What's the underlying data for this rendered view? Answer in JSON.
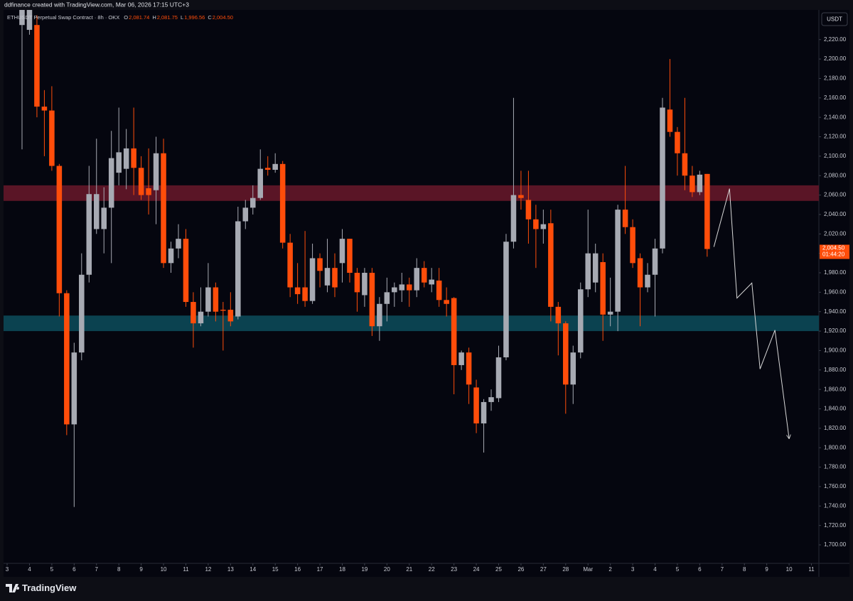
{
  "chart_data": {
    "type": "candlestick",
    "header": "ddfinance created with TradingView.com, Mar 06, 2026 17:15 UTC+3",
    "legend": {
      "symbol": "ETHUSDT Perpetual Swap Contract · 8h · OKX",
      "items": [
        {
          "key": "O",
          "value": "2,081.74"
        },
        {
          "key": "H",
          "value": "2,081.75"
        },
        {
          "key": "L",
          "value": "1,996.56"
        },
        {
          "key": "C",
          "value": "2,004.50"
        }
      ]
    },
    "currency": "USDT",
    "brand": "TradingView",
    "up_color": "#a7aab3",
    "down_color": "#ff4d0a",
    "x": [
      2,
      3,
      4,
      5,
      6,
      7,
      8,
      9,
      10,
      11,
      12,
      13,
      14,
      15,
      16,
      17,
      18,
      19,
      20,
      21,
      22,
      23,
      24,
      25,
      26,
      27,
      28,
      29,
      30,
      31,
      32,
      33,
      34,
      35,
      36,
      37,
      38,
      39,
      40,
      41,
      42,
      43,
      44,
      45,
      46,
      47,
      48,
      49,
      50,
      51,
      52,
      53,
      54,
      55,
      56,
      57,
      58,
      59,
      60,
      61,
      62,
      63,
      64,
      65,
      66,
      67,
      68,
      69,
      70,
      71,
      72,
      73,
      74,
      75,
      76,
      77,
      78,
      79,
      80,
      81,
      82,
      83,
      84,
      85,
      86,
      87,
      88,
      89,
      90,
      91,
      92,
      93,
      94
    ],
    "open": [
      2235,
      2230,
      2235,
      2151,
      2147,
      2090,
      1959,
      1824,
      1898,
      1978,
      2025,
      2025,
      2047,
      2083,
      2087,
      2108,
      2088,
      2067,
      2065,
      2103,
      1990,
      2005,
      2015,
      1950,
      1928,
      1940,
      1965,
      1942,
      1942,
      1935,
      2033,
      2047,
      2057,
      2088,
      2086,
      2092,
      2011,
      1965,
      1965,
      1951,
      1995,
      1967,
      1985,
      1990,
      2015,
      1980,
      1957,
      1980,
      1925,
      1948,
      1960,
      1962,
      1968,
      1962,
      1985,
      1968,
      1972,
      1952,
      1954,
      1885,
      1898,
      1862,
      1825,
      1847,
      1851,
      1893,
      2012,
      2060,
      2055,
      2035,
      2025,
      2031,
      1945,
      1928,
      1865,
      1898,
      1963,
      1970,
      1991,
      1937,
      1940,
      2045,
      2027,
      1995,
      1965,
      1978,
      2005,
      2148,
      2125,
      2103,
      2080,
      2063,
      2081.74
    ],
    "high": [
      2265,
      2270,
      2245,
      2168,
      2172,
      2092,
      1962,
      1908,
      2000,
      2090,
      2118,
      2068,
      2126,
      2150,
      2128,
      2150,
      2100,
      2108,
      2120,
      2118,
      2012,
      2030,
      2025,
      1960,
      1965,
      1990,
      1970,
      1950,
      1960,
      2048,
      2055,
      2070,
      2107,
      2100,
      2103,
      2095,
      2020,
      1990,
      2023,
      2010,
      2000,
      2015,
      2000,
      2025,
      2015,
      1985,
      1985,
      1985,
      1955,
      1975,
      1970,
      1980,
      1975,
      1995,
      1992,
      1985,
      1985,
      1965,
      1955,
      1900,
      1903,
      1870,
      1850,
      1860,
      1905,
      2020,
      2160,
      2085,
      2085,
      2050,
      2045,
      2045,
      1950,
      1930,
      1905,
      1970,
      2045,
      2010,
      2000,
      1975,
      2050,
      2090,
      2035,
      2000,
      1990,
      2015,
      2160,
      2200,
      2130,
      2160,
      2090,
      2085,
      2081.75
    ],
    "low": [
      2107,
      2225,
      2140,
      2100,
      2085,
      1935,
      1813,
      1739,
      1890,
      1970,
      2020,
      2000,
      1990,
      2070,
      2066,
      2060,
      2055,
      2040,
      2030,
      1985,
      1980,
      1995,
      1945,
      1903,
      1925,
      1935,
      1930,
      1900,
      1925,
      1932,
      2025,
      2040,
      2055,
      2080,
      2083,
      2005,
      1955,
      1948,
      1945,
      1948,
      1965,
      1960,
      1955,
      1970,
      1970,
      1940,
      1945,
      1915,
      1910,
      1930,
      1945,
      1950,
      1945,
      1955,
      1965,
      1960,
      1945,
      1935,
      1855,
      1880,
      1845,
      1815,
      1795,
      1838,
      1847,
      1890,
      2005,
      2045,
      2010,
      1985,
      2010,
      1930,
      1895,
      1835,
      1845,
      1892,
      1955,
      1960,
      1910,
      1925,
      1920,
      2020,
      1985,
      1925,
      1960,
      1935,
      2000,
      2120,
      2080,
      2065,
      2058,
      2060,
      1996.56
    ],
    "close": [
      2260,
      2260,
      2151,
      2147,
      2090,
      1959,
      1824,
      1898,
      1978,
      2061,
      2061,
      2047,
      2098,
      2104,
      2108,
      2088,
      2060,
      2060,
      2103,
      1990,
      2005,
      2015,
      1950,
      1928,
      1940,
      1965,
      1940,
      1941,
      1930,
      2033,
      2047,
      2057,
      2087,
      2086,
      2092,
      2011,
      1965,
      1958,
      1951,
      1995,
      1982,
      1985,
      1965,
      2015,
      1980,
      1960,
      1980,
      1925,
      1948,
      1960,
      1965,
      1968,
      1962,
      1985,
      1970,
      1973,
      1952,
      1948,
      1885,
      1898,
      1865,
      1825,
      1847,
      1852,
      1893,
      2012,
      2060,
      2057,
      2035,
      2025,
      2030,
      1945,
      1928,
      1865,
      1898,
      1963,
      2000,
      2000,
      1937,
      1940,
      2045,
      2027,
      1990,
      1965,
      1978,
      2005,
      2150,
      2125,
      2103,
      2080,
      2063,
      2081,
      2004.5
    ],
    "zones": [
      {
        "range": [
          2054,
          2070
        ],
        "color": "#5a1526"
      },
      {
        "range": [
          1920,
          1936
        ],
        "color": "#0b4250"
      }
    ],
    "projection": {
      "x": [
        94.9,
        97.0,
        98.0,
        100.0,
        101.1,
        103.1,
        105.0
      ],
      "values": [
        2006.7,
        2066.6,
        1954,
        1969.5,
        1881,
        1921,
        1809.5
      ],
      "color": "#d8d8d8"
    },
    "last_price": {
      "value": 2004.5,
      "label": "2,004.50",
      "countdown": "01:44:20"
    },
    "xlim": [
      -0.48,
      109
    ],
    "ylim": [
      1681,
      2250.5
    ],
    "xticks": [
      {
        "value": 0,
        "label": "3"
      },
      {
        "value": 3,
        "label": "4"
      },
      {
        "value": 6,
        "label": "5"
      },
      {
        "value": 9,
        "label": "6"
      },
      {
        "value": 12,
        "label": "7"
      },
      {
        "value": 15,
        "label": "8"
      },
      {
        "value": 18,
        "label": "9"
      },
      {
        "value": 21,
        "label": "10"
      },
      {
        "value": 24,
        "label": "11"
      },
      {
        "value": 27,
        "label": "12"
      },
      {
        "value": 30,
        "label": "13"
      },
      {
        "value": 33,
        "label": "14"
      },
      {
        "value": 36,
        "label": "15"
      },
      {
        "value": 39,
        "label": "16"
      },
      {
        "value": 42,
        "label": "17"
      },
      {
        "value": 45,
        "label": "18"
      },
      {
        "value": 48,
        "label": "19"
      },
      {
        "value": 51,
        "label": "20"
      },
      {
        "value": 54,
        "label": "21"
      },
      {
        "value": 57,
        "label": "22"
      },
      {
        "value": 60,
        "label": "23"
      },
      {
        "value": 63,
        "label": "24"
      },
      {
        "value": 66,
        "label": "25"
      },
      {
        "value": 69,
        "label": "26"
      },
      {
        "value": 72,
        "label": "27"
      },
      {
        "value": 75,
        "label": "28"
      },
      {
        "value": 78,
        "label": "Mar"
      },
      {
        "value": 81,
        "label": "2"
      },
      {
        "value": 84,
        "label": "3"
      },
      {
        "value": 87,
        "label": "4"
      },
      {
        "value": 90,
        "label": "5"
      },
      {
        "value": 93,
        "label": "6"
      },
      {
        "value": 96,
        "label": "7"
      },
      {
        "value": 99,
        "label": "8"
      },
      {
        "value": 102,
        "label": "9"
      },
      {
        "value": 105,
        "label": "10"
      },
      {
        "value": 108,
        "label": "11"
      }
    ],
    "yticks": [
      {
        "value": 1700,
        "label": "1,700.00"
      },
      {
        "value": 1720,
        "label": "1,720.00"
      },
      {
        "value": 1740,
        "label": "1,740.00"
      },
      {
        "value": 1760,
        "label": "1,760.00"
      },
      {
        "value": 1780,
        "label": "1,780.00"
      },
      {
        "value": 1800,
        "label": "1,800.00"
      },
      {
        "value": 1820,
        "label": "1,820.00"
      },
      {
        "value": 1840,
        "label": "1,840.00"
      },
      {
        "value": 1860,
        "label": "1,860.00"
      },
      {
        "value": 1880,
        "label": "1,880.00"
      },
      {
        "value": 1900,
        "label": "1,900.00"
      },
      {
        "value": 1920,
        "label": "1,920.00"
      },
      {
        "value": 1940,
        "label": "1,940.00"
      },
      {
        "value": 1960,
        "label": "1,960.00"
      },
      {
        "value": 1980,
        "label": "1,980.00"
      },
      {
        "value": 2000,
        "label": "2,000.00"
      },
      {
        "value": 2020,
        "label": "2,020.00"
      },
      {
        "value": 2040,
        "label": "2,040.00"
      },
      {
        "value": 2060,
        "label": "2,060.00"
      },
      {
        "value": 2080,
        "label": "2,080.00"
      },
      {
        "value": 2100,
        "label": "2,100.00"
      },
      {
        "value": 2120,
        "label": "2,120.00"
      },
      {
        "value": 2140,
        "label": "2,140.00"
      },
      {
        "value": 2160,
        "label": "2,160.00"
      },
      {
        "value": 2180,
        "label": "2,180.00"
      },
      {
        "value": 2200,
        "label": "2,200.00"
      },
      {
        "value": 2220,
        "label": "2,220.00"
      }
    ]
  }
}
